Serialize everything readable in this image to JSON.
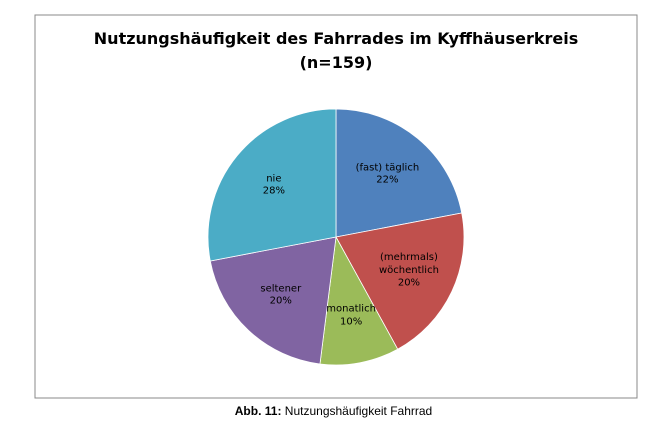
{
  "chart_data": {
    "type": "pie",
    "title": [
      "Nutzungshäufigkeit des Fahrrades im Kyffhäuserkreis",
      "(n=159)"
    ],
    "categories": [
      "(fast) täglich",
      "(mehrmals) wöchentlich",
      "monatlich",
      "seltener",
      "nie"
    ],
    "values": [
      22,
      20,
      10,
      20,
      28
    ],
    "value_labels": [
      "22%",
      "20%",
      "10%",
      "20%",
      "28%"
    ],
    "colors": [
      "#4f81bd",
      "#c0504d",
      "#9bbb59",
      "#8064a2",
      "#4bacc6"
    ]
  },
  "caption": {
    "label": "Abb. 11:",
    "text": "Nutzungshäufigkeit Fahrrad"
  }
}
